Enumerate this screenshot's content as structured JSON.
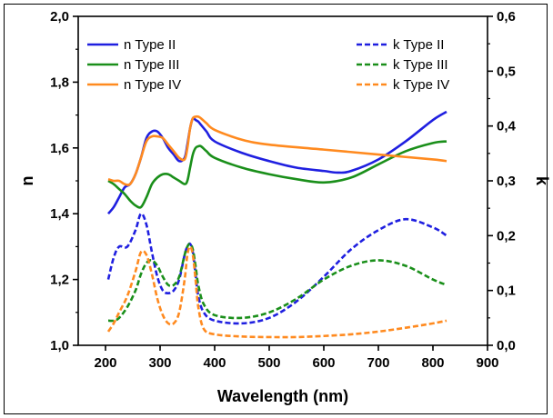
{
  "chart_data": {
    "type": "line",
    "title": "",
    "xlabel": "Wavelength (nm)",
    "ylabel_left": "n",
    "ylabel_right": "k",
    "xlim": [
      150,
      900
    ],
    "ylim_left": [
      1.0,
      2.0
    ],
    "ylim_right": [
      0.0,
      0.6
    ],
    "x_ticks": [
      200,
      300,
      400,
      500,
      600,
      700,
      800,
      900
    ],
    "x_tick_labels": [
      "200",
      "300",
      "400",
      "500",
      "600",
      "700",
      "800",
      "900"
    ],
    "y_left_ticks": [
      1.0,
      1.2,
      1.4,
      1.6,
      1.8,
      2.0
    ],
    "y_left_tick_labels": [
      "1,0",
      "1,2",
      "1,4",
      "1,6",
      "1,8",
      "2,0"
    ],
    "y_right_ticks": [
      0.0,
      0.1,
      0.2,
      0.3,
      0.4,
      0.5,
      0.6
    ],
    "y_right_tick_labels": [
      "0,0",
      "0,1",
      "0,2",
      "0,3",
      "0,4",
      "0,5",
      "0,6"
    ],
    "grid": false,
    "legend_left": {
      "placement": "top-left",
      "entries": [
        "n Type II",
        "n Type III",
        "n Type IV"
      ]
    },
    "legend_right": {
      "placement": "top-right",
      "entries": [
        "k Type II",
        "k Type III",
        "k Type IV"
      ]
    },
    "colors": {
      "type_ii": "#1f1fe0",
      "type_iii": "#1a8f1a",
      "type_iv": "#ff8a1f"
    },
    "series": [
      {
        "name": "n Type II",
        "axis": "left",
        "style": "solid",
        "color": "#1f1fe0",
        "x": [
          205,
          215,
          225,
          235,
          245,
          255,
          265,
          275,
          285,
          295,
          305,
          315,
          325,
          335,
          345,
          350,
          355,
          360,
          365,
          370,
          375,
          385,
          400,
          450,
          500,
          550,
          600,
          625,
          650,
          700,
          750,
          800,
          825
        ],
        "y": [
          1.4,
          1.42,
          1.45,
          1.48,
          1.49,
          1.52,
          1.57,
          1.63,
          1.65,
          1.65,
          1.63,
          1.6,
          1.58,
          1.56,
          1.57,
          1.61,
          1.66,
          1.69,
          1.685,
          1.68,
          1.67,
          1.65,
          1.62,
          1.585,
          1.56,
          1.54,
          1.53,
          1.525,
          1.53,
          1.565,
          1.62,
          1.685,
          1.71
        ]
      },
      {
        "name": "n Type III",
        "axis": "left",
        "style": "solid",
        "color": "#1a8f1a",
        "x": [
          205,
          215,
          225,
          235,
          245,
          255,
          265,
          275,
          285,
          295,
          305,
          315,
          325,
          335,
          345,
          350,
          355,
          360,
          365,
          370,
          375,
          385,
          400,
          450,
          500,
          550,
          600,
          650,
          700,
          750,
          800,
          825
        ],
        "y": [
          1.5,
          1.49,
          1.475,
          1.46,
          1.44,
          1.425,
          1.42,
          1.45,
          1.49,
          1.51,
          1.52,
          1.52,
          1.51,
          1.5,
          1.49,
          1.5,
          1.54,
          1.58,
          1.6,
          1.605,
          1.605,
          1.59,
          1.57,
          1.54,
          1.52,
          1.505,
          1.495,
          1.51,
          1.55,
          1.59,
          1.615,
          1.62
        ]
      },
      {
        "name": "n Type IV",
        "axis": "left",
        "style": "solid",
        "color": "#ff8a1f",
        "x": [
          205,
          215,
          225,
          235,
          245,
          255,
          265,
          275,
          285,
          295,
          305,
          315,
          325,
          335,
          345,
          350,
          355,
          360,
          365,
          370,
          375,
          385,
          400,
          450,
          500,
          600,
          700,
          800,
          825
        ],
        "y": [
          1.505,
          1.5,
          1.5,
          1.49,
          1.49,
          1.52,
          1.57,
          1.62,
          1.635,
          1.635,
          1.63,
          1.61,
          1.59,
          1.57,
          1.565,
          1.6,
          1.66,
          1.69,
          1.695,
          1.695,
          1.69,
          1.675,
          1.655,
          1.625,
          1.61,
          1.595,
          1.58,
          1.565,
          1.56
        ]
      },
      {
        "name": "k Type II",
        "axis": "right",
        "style": "dashed",
        "color": "#1f1fe0",
        "x": [
          205,
          215,
          225,
          240,
          255,
          265,
          275,
          285,
          295,
          305,
          315,
          325,
          335,
          345,
          350,
          355,
          360,
          365,
          370,
          380,
          400,
          450,
          500,
          550,
          600,
          650,
          700,
          750,
          800,
          825
        ],
        "y": [
          0.12,
          0.16,
          0.18,
          0.18,
          0.21,
          0.24,
          0.22,
          0.17,
          0.125,
          0.1,
          0.095,
          0.1,
          0.12,
          0.165,
          0.18,
          0.185,
          0.17,
          0.13,
          0.09,
          0.06,
          0.045,
          0.04,
          0.05,
          0.08,
          0.125,
          0.175,
          0.21,
          0.23,
          0.215,
          0.2
        ]
      },
      {
        "name": "k Type III",
        "axis": "right",
        "style": "dashed",
        "color": "#1a8f1a",
        "x": [
          205,
          215,
          225,
          240,
          255,
          265,
          275,
          285,
          295,
          305,
          315,
          325,
          335,
          345,
          350,
          355,
          360,
          365,
          370,
          380,
          400,
          450,
          500,
          550,
          600,
          650,
          700,
          750,
          800,
          825
        ],
        "y": [
          0.045,
          0.045,
          0.05,
          0.07,
          0.1,
          0.13,
          0.15,
          0.155,
          0.145,
          0.125,
          0.11,
          0.11,
          0.125,
          0.165,
          0.18,
          0.185,
          0.175,
          0.145,
          0.11,
          0.075,
          0.055,
          0.05,
          0.06,
          0.085,
          0.12,
          0.145,
          0.155,
          0.145,
          0.12,
          0.11
        ]
      },
      {
        "name": "k Type IV",
        "axis": "right",
        "style": "dashed",
        "color": "#ff8a1f",
        "x": [
          205,
          215,
          225,
          240,
          255,
          265,
          275,
          285,
          295,
          305,
          315,
          325,
          335,
          345,
          350,
          355,
          360,
          365,
          370,
          380,
          400,
          450,
          500,
          550,
          600,
          650,
          700,
          750,
          800,
          825
        ],
        "y": [
          0.025,
          0.04,
          0.06,
          0.09,
          0.135,
          0.17,
          0.165,
          0.13,
          0.085,
          0.055,
          0.04,
          0.04,
          0.06,
          0.12,
          0.165,
          0.18,
          0.165,
          0.12,
          0.07,
          0.03,
          0.02,
          0.016,
          0.015,
          0.015,
          0.017,
          0.02,
          0.025,
          0.032,
          0.04,
          0.045
        ]
      }
    ]
  }
}
